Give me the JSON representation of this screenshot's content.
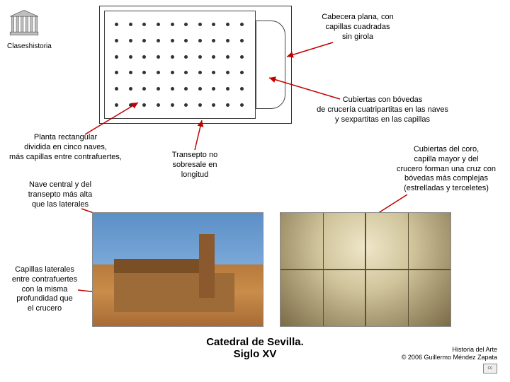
{
  "brand": "Claseshistoria",
  "annotations": {
    "cabecera": "Cabecera plana, con\ncapillas cuadradas\nsin girola",
    "planta": "Planta rectangular\ndividida en cinco naves,\nmás capillas entre contrafuertes,",
    "cubiertas_naves": "Cubiertas con bóvedas\nde crucería cuatripartitas en las naves\ny sexpartitas en las capillas",
    "transepto": "Transepto no\nsobresale en\nlongitud",
    "nave_central": "Nave central y del\ntransepto más alta\nque las laterales",
    "cubiertas_coro": "Cubiertas del coro,\ncapilla mayor y del\ncrucero forman una cruz con\nbóvedas más complejas\n(estrelladas y terceletes)",
    "capillas_laterales": "Capillas laterales\nentre contrafuertes\ncon la misma\nprofundidad que\nel crucero"
  },
  "title": "Catedral de Sevilla.\nSiglo XV",
  "credits_line1": "Historia del Arte",
  "credits_line2": "© 2006 Guillermo Méndez Zapata",
  "colors": {
    "arrow": "#c00000"
  }
}
